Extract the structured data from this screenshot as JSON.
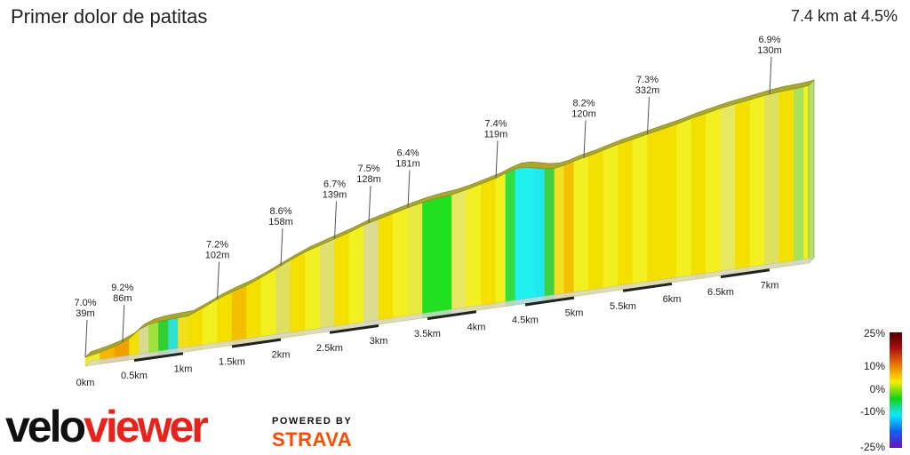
{
  "title": "Primer dolor de patitas",
  "summary": "7.4 km at 4.5%",
  "brand": {
    "logo_part1": "velo",
    "logo_part2": "viewer",
    "powered_by": "POWERED BY",
    "powered_name": "STRAVA"
  },
  "colors": {
    "brand_red": "#e8231b",
    "strava_orange": "#fc4c02",
    "baseline": "#222222"
  },
  "legend": {
    "labels": [
      "25%",
      "10%",
      "0%",
      "-10%",
      "-25%"
    ],
    "stops": [
      "#4a0000",
      "#b01010",
      "#f07a00",
      "#f3ee00",
      "#18d018",
      "#10e8ff",
      "#1060f0",
      "#6a10c0"
    ]
  },
  "chart_data": {
    "type": "area",
    "title": "Primer dolor de patitas",
    "subtitle": "7.4 km at 4.5%",
    "xlabel": "",
    "ylabel": "",
    "x_ticks": [
      "0km",
      "0.5km",
      "1km",
      "1.5km",
      "2km",
      "2.5km",
      "3km",
      "3.5km",
      "4km",
      "4.5km",
      "5km",
      "5.5km",
      "6km",
      "6.5km",
      "7km"
    ],
    "x_tick_values": [
      0,
      0.5,
      1,
      1.5,
      2,
      2.5,
      3,
      3.5,
      4,
      4.5,
      5,
      5.5,
      6,
      6.5,
      7
    ],
    "xlim": [
      0,
      7.4
    ],
    "profile": {
      "distance_km": [
        0,
        0.15,
        0.3,
        0.45,
        0.55,
        0.65,
        0.75,
        0.85,
        0.95,
        1.05,
        1.2,
        1.35,
        1.5,
        1.65,
        1.8,
        1.95,
        2.1,
        2.25,
        2.4,
        2.55,
        2.7,
        2.85,
        3.0,
        3.15,
        3.3,
        3.45,
        3.6,
        3.75,
        3.9,
        4.05,
        4.2,
        4.3,
        4.4,
        4.5,
        4.6,
        4.7,
        4.8,
        4.9,
        5.0,
        5.15,
        5.3,
        5.45,
        5.6,
        5.75,
        5.9,
        6.05,
        6.2,
        6.35,
        6.5,
        6.65,
        6.8,
        6.95,
        7.1,
        7.25,
        7.35,
        7.4
      ],
      "elevation_rel": [
        0,
        0.02,
        0.045,
        0.085,
        0.135,
        0.16,
        0.17,
        0.175,
        0.178,
        0.18,
        0.22,
        0.265,
        0.3,
        0.33,
        0.37,
        0.415,
        0.46,
        0.5,
        0.53,
        0.56,
        0.59,
        0.625,
        0.65,
        0.675,
        0.7,
        0.72,
        0.735,
        0.745,
        0.765,
        0.79,
        0.815,
        0.84,
        0.86,
        0.86,
        0.845,
        0.83,
        0.825,
        0.835,
        0.855,
        0.875,
        0.9,
        0.925,
        0.945,
        0.965,
        0.985,
        1.005,
        1.03,
        1.05,
        1.07,
        1.085,
        1.1,
        1.115,
        1.125,
        1.13,
        1.135,
        1.14
      ],
      "segment_colors": [
        "#ecec30",
        "#f4b800",
        "#f0a000",
        "#f4e000",
        "#dada90",
        "#a0e040",
        "#30d030",
        "#30e0d0",
        "#f0e020",
        "#f4e000",
        "#f2f020",
        "#f4e000",
        "#f2c000",
        "#f4e000",
        "#f2f020",
        "#e0e060",
        "#f4e000",
        "#f2f020",
        "#e0e070",
        "#f4e000",
        "#f2f020",
        "#dcdc90",
        "#f4e000",
        "#f2f020",
        "#e8e840",
        "#20e020",
        "#20e020",
        "#e8e860",
        "#f2f020",
        "#f4e000",
        "#f2f020",
        "#30e040",
        "#20f0f0",
        "#20f0f0",
        "#20e8f0",
        "#40d040",
        "#f0e020",
        "#f4c000",
        "#f2f020",
        "#f4e000",
        "#f2f020",
        "#f4e000",
        "#f2f020",
        "#f4e000",
        "#f4e000",
        "#f2f020",
        "#f4e000",
        "#f2f020",
        "#e8e860",
        "#f4e000",
        "#f2f020",
        "#e0e060",
        "#f4e000",
        "#a8e060",
        "#f2f020"
      ]
    },
    "annotations": [
      {
        "distance_km": 0.0,
        "grade": "7.0%",
        "length": "39m"
      },
      {
        "distance_km": 0.38,
        "grade": "9.2%",
        "length": "86m"
      },
      {
        "distance_km": 1.35,
        "grade": "7.2%",
        "length": "102m"
      },
      {
        "distance_km": 2.0,
        "grade": "8.6%",
        "length": "158m"
      },
      {
        "distance_km": 2.55,
        "grade": "6.7%",
        "length": "139m"
      },
      {
        "distance_km": 2.9,
        "grade": "7.5%",
        "length": "128m"
      },
      {
        "distance_km": 3.3,
        "grade": "6.4%",
        "length": "181m"
      },
      {
        "distance_km": 4.2,
        "grade": "7.4%",
        "length": "119m"
      },
      {
        "distance_km": 5.1,
        "grade": "8.2%",
        "length": "120m"
      },
      {
        "distance_km": 5.75,
        "grade": "7.3%",
        "length": "332m"
      },
      {
        "distance_km": 7.0,
        "grade": "6.9%",
        "length": "130m"
      }
    ]
  }
}
